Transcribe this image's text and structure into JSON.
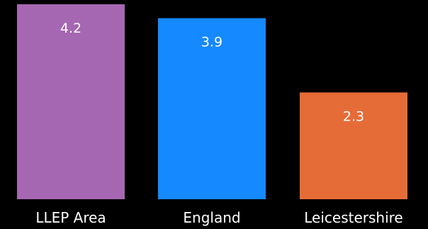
{
  "chart_data": {
    "type": "bar",
    "categories": [
      "LLEP Area",
      "England",
      "Leicestershire"
    ],
    "values": [
      4.2,
      3.9,
      2.3
    ],
    "colors": [
      "#a567b1",
      "#1589ff",
      "#e66c37"
    ],
    "ylim": [
      0,
      4.2
    ],
    "grid": false,
    "legend": "none",
    "data_labels": [
      "4.2",
      "3.9",
      "2.3"
    ]
  }
}
